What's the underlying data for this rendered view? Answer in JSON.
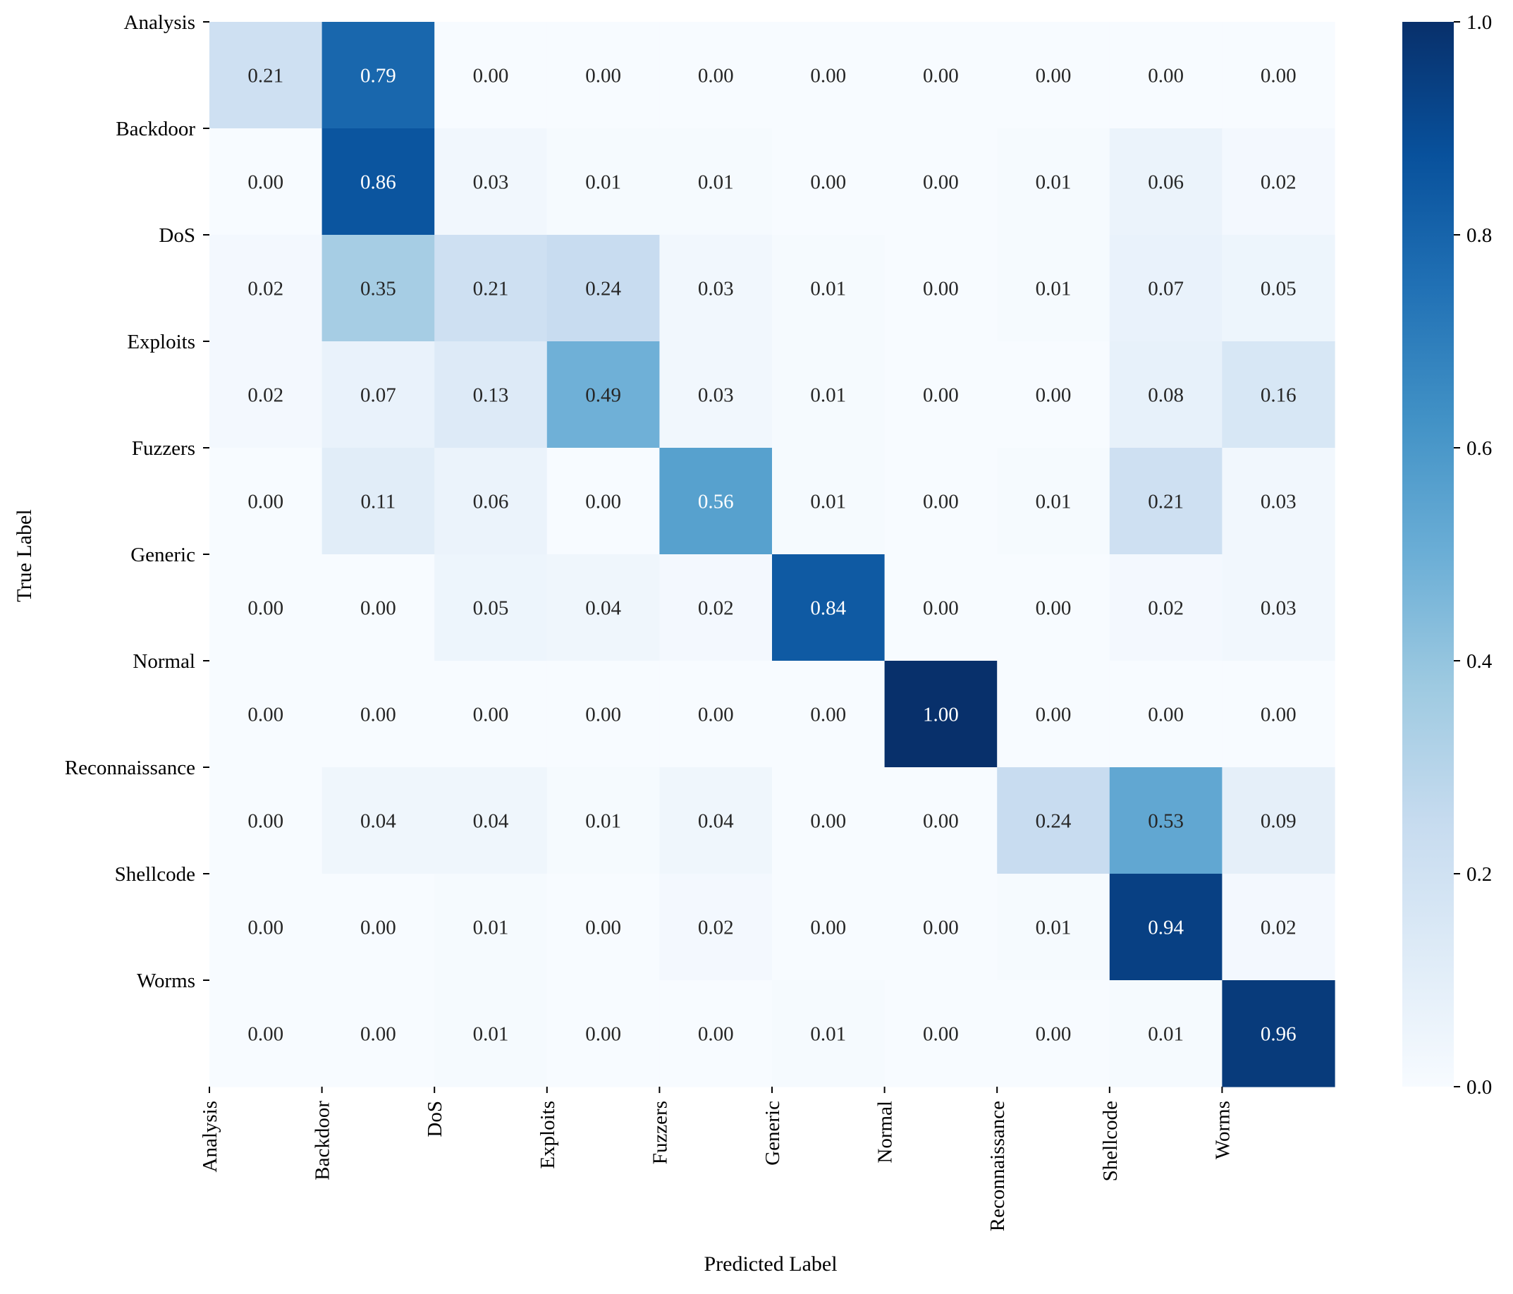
{
  "chart_data": {
    "type": "heatmap",
    "title": "",
    "xlabel": "Predicted Label",
    "ylabel": "True Label",
    "x_categories": [
      "Analysis",
      "Backdoor",
      "DoS",
      "Exploits",
      "Fuzzers",
      "Generic",
      "Normal",
      "Reconnaissance",
      "Shellcode",
      "Worms"
    ],
    "y_categories": [
      "Analysis",
      "Backdoor",
      "DoS",
      "Exploits",
      "Fuzzers",
      "Generic",
      "Normal",
      "Reconnaissance",
      "Shellcode",
      "Worms"
    ],
    "values": [
      [
        0.21,
        0.79,
        0.0,
        0.0,
        0.0,
        0.0,
        0.0,
        0.0,
        0.0,
        0.0
      ],
      [
        0.0,
        0.86,
        0.03,
        0.01,
        0.01,
        0.0,
        0.0,
        0.01,
        0.06,
        0.02
      ],
      [
        0.02,
        0.35,
        0.21,
        0.24,
        0.03,
        0.01,
        0.0,
        0.01,
        0.07,
        0.05
      ],
      [
        0.02,
        0.07,
        0.13,
        0.49,
        0.03,
        0.01,
        0.0,
        0.0,
        0.08,
        0.16
      ],
      [
        0.0,
        0.11,
        0.06,
        0.0,
        0.56,
        0.01,
        0.0,
        0.01,
        0.21,
        0.03
      ],
      [
        0.0,
        0.0,
        0.05,
        0.04,
        0.02,
        0.84,
        0.0,
        0.0,
        0.02,
        0.03
      ],
      [
        0.0,
        0.0,
        0.0,
        0.0,
        0.0,
        0.0,
        1.0,
        0.0,
        0.0,
        0.0
      ],
      [
        0.0,
        0.04,
        0.04,
        0.01,
        0.04,
        0.0,
        0.0,
        0.24,
        0.53,
        0.09
      ],
      [
        0.0,
        0.0,
        0.01,
        0.0,
        0.02,
        0.0,
        0.0,
        0.01,
        0.94,
        0.02
      ],
      [
        0.0,
        0.0,
        0.01,
        0.0,
        0.0,
        0.01,
        0.0,
        0.0,
        0.01,
        0.96
      ]
    ],
    "value_format": "0.00",
    "colormap": "Blues",
    "color_range": [
      0.0,
      1.0
    ],
    "colorbar": {
      "ticks": [
        0.0,
        0.2,
        0.4,
        0.6,
        0.8,
        1.0
      ],
      "tick_labels": [
        "0.0",
        "0.2",
        "0.4",
        "0.6",
        "0.8",
        "1.0"
      ],
      "placement": "right"
    },
    "grid": false,
    "legend": "none",
    "tick_alignment": "cell-edge",
    "x_tick_rotation": "vertical"
  }
}
